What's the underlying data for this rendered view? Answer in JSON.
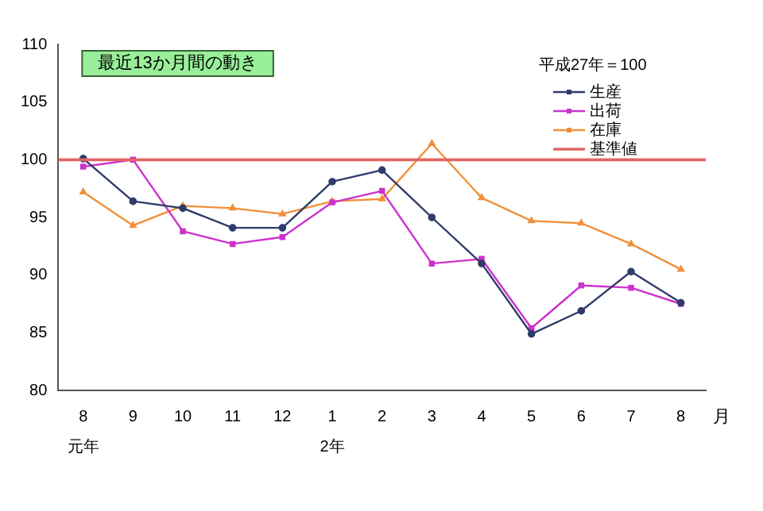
{
  "chart_data": {
    "type": "line",
    "title": "最近13か月間の動き",
    "xlabel": "月",
    "categories": [
      "8\n元年",
      "9",
      "10",
      "11",
      "12",
      "1\n2年",
      "2",
      "3",
      "4",
      "5",
      "6",
      "7",
      "8"
    ],
    "series": [
      {
        "name": "生産",
        "color": "#2f3b6b",
        "marker": "circle",
        "values": [
          100.1,
          96.4,
          95.8,
          94.1,
          94.1,
          98.1,
          99.1,
          95.0,
          91.0,
          84.9,
          86.9,
          90.3,
          87.6
        ]
      },
      {
        "name": "出荷",
        "color": "#cc33cc",
        "marker": "square",
        "values": [
          99.4,
          100.0,
          93.8,
          92.7,
          93.3,
          96.3,
          97.3,
          91.0,
          91.4,
          85.4,
          89.1,
          88.9,
          87.5
        ]
      },
      {
        "name": "在庫",
        "color": "#f0903a",
        "marker": "triangle",
        "values": [
          97.2,
          94.3,
          96.0,
          95.8,
          95.3,
          96.4,
          96.6,
          101.4,
          96.7,
          94.7,
          94.5,
          92.7,
          90.5
        ]
      }
    ],
    "ylim": [
      80,
      110
    ],
    "yticks": [
      80,
      85,
      90,
      95,
      100,
      105,
      110
    ],
    "grid": false,
    "legend": "top right",
    "line_style": "solid",
    "ref_lines": [
      {
        "axis": "y",
        "value": 100,
        "label": "基準値",
        "color": "#e06666"
      }
    ],
    "annotations": [
      "平成27年＝100"
    ]
  }
}
